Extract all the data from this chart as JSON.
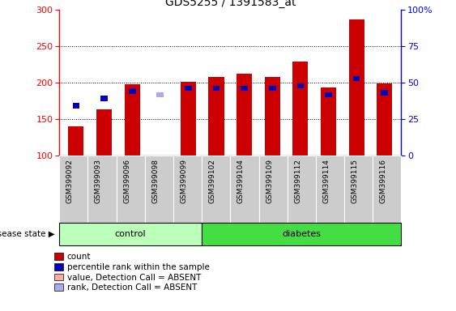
{
  "title": "GDS5255 / 1391583_at",
  "samples": [
    "GSM399092",
    "GSM399093",
    "GSM399096",
    "GSM399098",
    "GSM399099",
    "GSM399102",
    "GSM399104",
    "GSM399109",
    "GSM399112",
    "GSM399114",
    "GSM399115",
    "GSM399116"
  ],
  "count_values": [
    140,
    163,
    197,
    100,
    201,
    207,
    212,
    207,
    229,
    193,
    286,
    199
  ],
  "percentile_values": [
    168,
    178,
    188,
    183,
    192,
    192,
    192,
    192,
    195,
    183,
    205,
    186
  ],
  "absent_flags": [
    false,
    false,
    false,
    true,
    false,
    false,
    false,
    false,
    false,
    false,
    false,
    false
  ],
  "ylim_left": [
    100,
    300
  ],
  "ylim_right": [
    0,
    100
  ],
  "yticks_left": [
    100,
    150,
    200,
    250,
    300
  ],
  "yticks_right": [
    0,
    25,
    50,
    75,
    100
  ],
  "bar_color_red": "#cc0000",
  "bar_color_pink": "#ffaaaa",
  "bar_color_blue": "#0000bb",
  "bar_color_lightblue": "#aaaaee",
  "bar_width": 0.55,
  "blue_bar_width": 0.25,
  "legend_items": [
    {
      "label": "count",
      "color": "#cc0000"
    },
    {
      "label": "percentile rank within the sample",
      "color": "#0000bb"
    },
    {
      "label": "value, Detection Call = ABSENT",
      "color": "#ffaaaa"
    },
    {
      "label": "rank, Detection Call = ABSENT",
      "color": "#aaaaee"
    }
  ],
  "disease_state_label": "disease state",
  "control_label": "control",
  "diabetes_label": "diabetes",
  "n_control": 5,
  "n_diabetes": 7,
  "control_color": "#bbffbb",
  "diabetes_color": "#44dd44",
  "sample_box_color": "#cccccc"
}
